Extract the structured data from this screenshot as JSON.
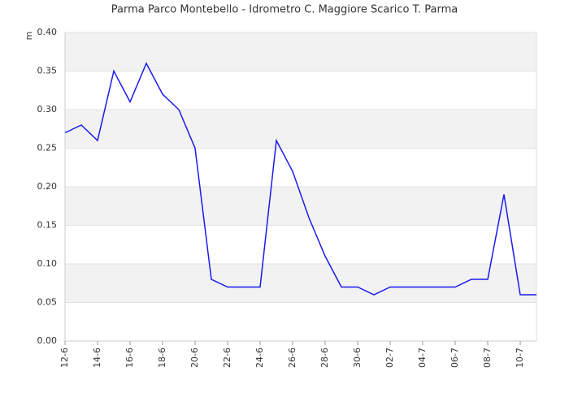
{
  "chart_data": {
    "type": "line",
    "title": "Parma Parco Montebello - Idrometro C. Maggiore Scarico T. Parma",
    "y_label": "m",
    "categories": [
      "12-6",
      null,
      "14-6",
      null,
      "16-6",
      null,
      "18-6",
      null,
      "20-6",
      null,
      "22-6",
      null,
      "24-6",
      null,
      "26-6",
      null,
      "28-6",
      null,
      "30-6",
      null,
      "02-7",
      null,
      "04-7",
      null,
      "06-7",
      null,
      "08-7",
      null,
      "10-7",
      null
    ],
    "values": [
      0.27,
      0.28,
      0.26,
      0.35,
      0.31,
      0.36,
      0.32,
      0.3,
      0.25,
      0.08,
      0.07,
      0.07,
      0.07,
      0.26,
      0.22,
      0.16,
      0.11,
      0.07,
      0.07,
      0.06,
      0.07,
      0.07,
      0.07,
      0.07,
      0.07,
      0.08,
      0.08,
      0.19,
      0.06,
      0.06
    ],
    "color": "#1a1aee",
    "ylim": [
      0,
      0.4
    ],
    "yticks": [
      {
        "value": 0,
        "label": "0.00"
      },
      {
        "value": 0.05,
        "label": "0.05"
      },
      {
        "value": 0.1,
        "label": "0.10"
      },
      {
        "value": 0.15,
        "label": "0.15"
      },
      {
        "value": 0.2,
        "label": "0.20"
      },
      {
        "value": 0.25,
        "label": "0.25"
      },
      {
        "value": 0.3,
        "label": "0.30"
      },
      {
        "value": 0.35,
        "label": "0.35"
      },
      {
        "value": 0.4,
        "label": "0.40"
      }
    ],
    "grid": true
  }
}
